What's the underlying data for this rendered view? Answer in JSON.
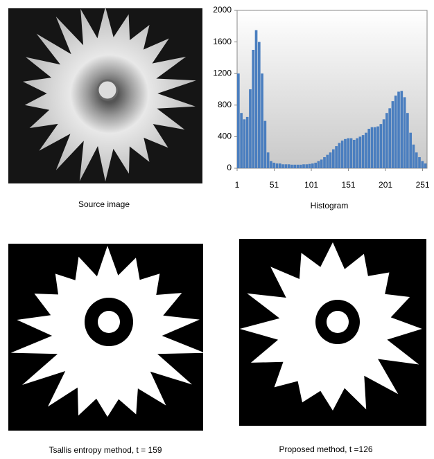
{
  "captions": {
    "source": "Source image",
    "tsallis": "Tsallis entropy method, t = 159",
    "proposed": "Proposed method, t =126"
  },
  "chart_data": {
    "type": "histogram",
    "xlabel": "Histogram",
    "color": "#4a7ebf",
    "bins": [
      1,
      5,
      9,
      13,
      17,
      21,
      25,
      29,
      33,
      37,
      41,
      45,
      49,
      53,
      57,
      61,
      65,
      69,
      73,
      77,
      81,
      85,
      89,
      93,
      97,
      101,
      105,
      109,
      113,
      117,
      121,
      125,
      129,
      133,
      137,
      141,
      145,
      149,
      153,
      157,
      161,
      165,
      169,
      173,
      177,
      181,
      185,
      189,
      193,
      197,
      201,
      205,
      209,
      213,
      217,
      221,
      225,
      229,
      233,
      237,
      241,
      245,
      249,
      253,
      257
    ],
    "values": [
      1200,
      700,
      620,
      650,
      1000,
      1500,
      1750,
      1600,
      1200,
      600,
      200,
      90,
      70,
      60,
      60,
      50,
      50,
      50,
      45,
      45,
      45,
      45,
      50,
      50,
      55,
      60,
      70,
      90,
      110,
      140,
      170,
      200,
      240,
      280,
      320,
      350,
      370,
      380,
      380,
      360,
      380,
      400,
      420,
      450,
      500,
      520,
      520,
      530,
      560,
      620,
      700,
      760,
      850,
      920,
      970,
      980,
      900,
      700,
      450,
      300,
      200,
      140,
      90,
      60
    ],
    "xlim": [
      1,
      257
    ],
    "xticks": [
      1,
      51,
      101,
      151,
      201,
      251
    ],
    "ylim": [
      0,
      2000
    ],
    "yticks": [
      0,
      400,
      800,
      1200,
      1600,
      2000
    ]
  }
}
